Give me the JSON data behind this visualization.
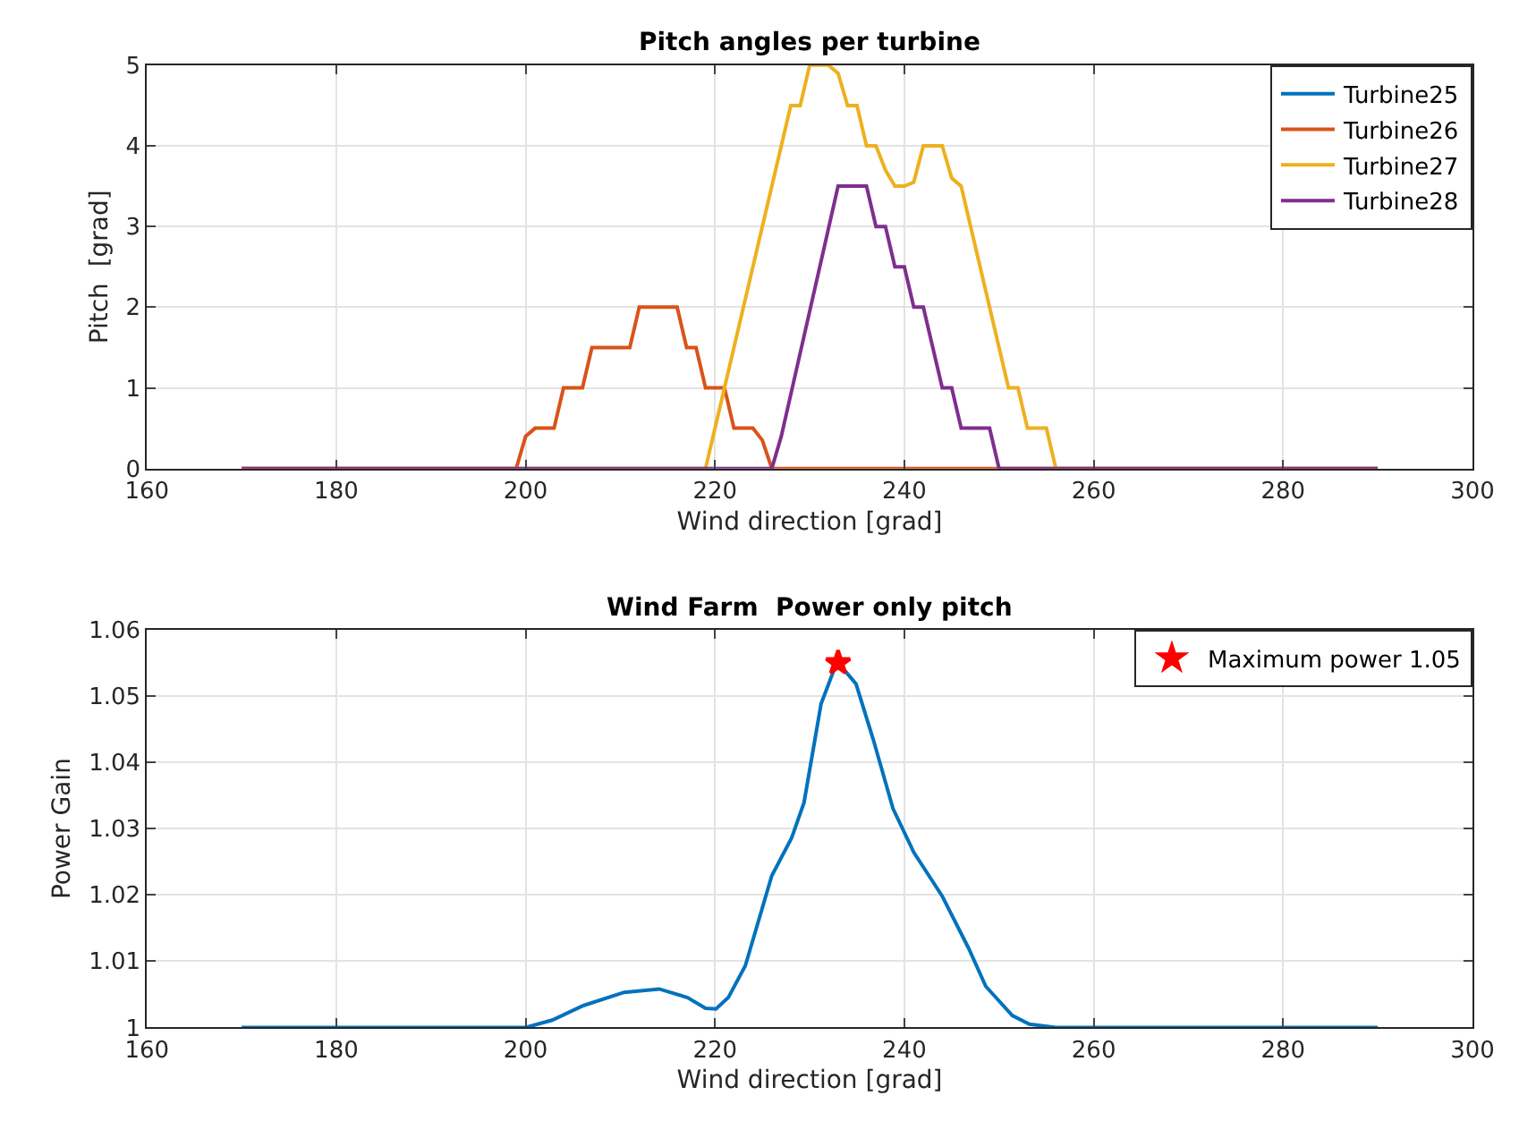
{
  "chart_data": [
    {
      "type": "line",
      "title": "Pitch angles per turbine",
      "xlabel": "Wind direction [grad]",
      "ylabel": "Pitch  [grad]",
      "xlim": [
        160,
        300
      ],
      "xticks": [
        160,
        180,
        200,
        220,
        240,
        260,
        280,
        300
      ],
      "ylim": [
        0,
        5
      ],
      "yticks": [
        0,
        1,
        2,
        3,
        4,
        5
      ],
      "grid": true,
      "legend": "top right",
      "line_style": "solid",
      "marker": "none",
      "series": [
        {
          "name": "Turbine25",
          "color": "#0072bd"
        },
        {
          "name": "Turbine26",
          "color": "#d95319",
          "x": [
            170,
            199,
            200,
            201,
            203,
            204,
            206,
            207,
            211,
            212,
            216,
            217,
            218,
            219,
            221,
            222,
            224,
            225,
            226,
            290
          ],
          "values": [
            0,
            0,
            0.4,
            0.5,
            0.5,
            1,
            1,
            1.5,
            1.5,
            2,
            2,
            1.5,
            1.5,
            1,
            1,
            0.5,
            0.5,
            0.35,
            0,
            0
          ]
        },
        {
          "name": "Turbine27",
          "color": "#edb120",
          "x": [
            170,
            219,
            228,
            229,
            230,
            232,
            233,
            234,
            235,
            236,
            237,
            238,
            239,
            240,
            241,
            242,
            244,
            245,
            246,
            251,
            252,
            253,
            255,
            256,
            290
          ],
          "values": [
            0,
            0,
            4.5,
            4.5,
            5,
            5,
            4.9,
            4.5,
            4.5,
            4,
            4,
            3.7,
            3.5,
            3.5,
            3.55,
            4,
            4,
            3.6,
            3.5,
            1,
            1,
            0.5,
            0.5,
            0,
            0
          ]
        },
        {
          "name": "Turbine28",
          "color": "#7e2f8e",
          "x": [
            170,
            226,
            227,
            233,
            236,
            237,
            238,
            239,
            240,
            241,
            242,
            244,
            245,
            246,
            249,
            250,
            290
          ],
          "values": [
            0,
            0,
            0.4,
            3.5,
            3.5,
            3,
            3,
            2.5,
            2.5,
            2,
            2,
            1,
            1,
            0.5,
            0.5,
            0,
            0
          ]
        }
      ]
    },
    {
      "type": "line",
      "title": "Wind Farm  Power only pitch",
      "xlabel": "Wind direction [grad]",
      "ylabel": "Power Gain",
      "xlim": [
        160,
        300
      ],
      "xticks": [
        160,
        180,
        200,
        220,
        240,
        260,
        280,
        300
      ],
      "ylim": [
        1,
        1.06
      ],
      "yticks": [
        1,
        1.01,
        1.02,
        1.03,
        1.04,
        1.05,
        1.06
      ],
      "grid": true,
      "legend": "top right",
      "line_style": "solid",
      "marker": "none",
      "series": [
        {
          "color": "#0072bd",
          "x": [
            170,
            200,
            202.8,
            206.1,
            210.4,
            214.1,
            217.1,
            219,
            220.1,
            221.4,
            223.2,
            226,
            228.1,
            229.4,
            231.2,
            232.9,
            234.9,
            236.7,
            238.8,
            241,
            244,
            246.8,
            248.6,
            251.4,
            253.2,
            256,
            290
          ],
          "values": [
            1,
            1,
            1.0011,
            1.0033,
            1.0053,
            1.0058,
            1.0045,
            1.0029,
            1.0028,
            1.0045,
            1.0093,
            1.0229,
            1.0286,
            1.0339,
            1.0488,
            1.0552,
            1.0518,
            1.0435,
            1.033,
            1.0264,
            1.0198,
            1.0119,
            1.0062,
            1.0018,
            1.0005,
            1,
            1
          ]
        },
        {
          "name": "Maximum power 1.05",
          "type": "scatter",
          "marker": "star",
          "color": "#ff0000",
          "x": [
            233
          ],
          "values": [
            1.055
          ]
        }
      ]
    }
  ]
}
